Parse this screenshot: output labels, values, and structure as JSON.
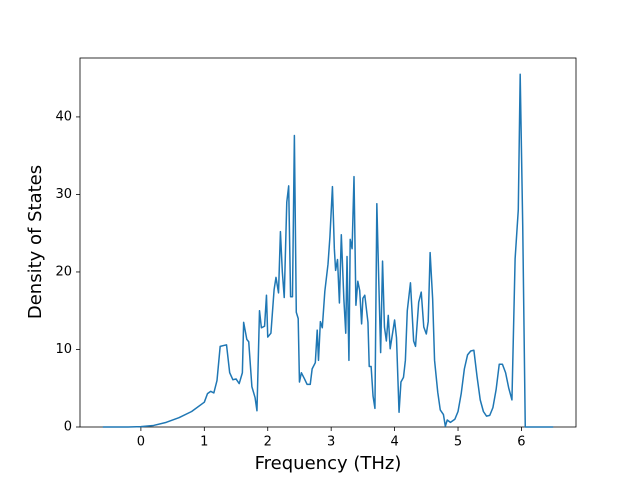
{
  "chart_data": {
    "type": "line",
    "x_label": "Frequency (THz)",
    "y_label": "Density of States",
    "x": [
      -0.6,
      -0.2,
      0,
      0.2,
      0.4,
      0.6,
      0.8,
      1.0,
      1.05,
      1.1,
      1.15,
      1.2,
      1.25,
      1.35,
      1.4,
      1.45,
      1.5,
      1.55,
      1.6,
      1.62,
      1.67,
      1.7,
      1.75,
      1.8,
      1.83,
      1.87,
      1.9,
      1.95,
      1.98,
      2.0,
      2.05,
      2.1,
      2.13,
      2.17,
      2.2,
      2.23,
      2.26,
      2.3,
      2.33,
      2.36,
      2.39,
      2.42,
      2.45,
      2.48,
      2.5,
      2.53,
      2.58,
      2.62,
      2.67,
      2.7,
      2.75,
      2.78,
      2.8,
      2.83,
      2.86,
      2.9,
      2.95,
      2.98,
      3.02,
      3.05,
      3.07,
      3.1,
      3.13,
      3.16,
      3.2,
      3.23,
      3.25,
      3.28,
      3.3,
      3.33,
      3.36,
      3.39,
      3.42,
      3.45,
      3.48,
      3.5,
      3.53,
      3.58,
      3.6,
      3.63,
      3.66,
      3.69,
      3.72,
      3.75,
      3.78,
      3.81,
      3.84,
      3.87,
      3.9,
      3.93,
      3.97,
      4.0,
      4.03,
      4.07,
      4.1,
      4.14,
      4.17,
      4.2,
      4.25,
      4.3,
      4.33,
      4.38,
      4.42,
      4.46,
      4.5,
      4.53,
      4.56,
      4.6,
      4.63,
      4.68,
      4.72,
      4.77,
      4.8,
      4.83,
      4.88,
      4.95,
      5.0,
      5.05,
      5.1,
      5.15,
      5.2,
      5.25,
      5.3,
      5.35,
      5.4,
      5.45,
      5.5,
      5.55,
      5.6,
      5.65,
      5.7,
      5.75,
      5.8,
      5.85,
      5.9,
      5.95,
      5.98,
      6.02,
      6.06,
      6.2,
      6.5
    ],
    "series": [
      {
        "color": "#1f77b4",
        "values": [
          0,
          0,
          0.05,
          0.2,
          0.6,
          1.2,
          2.0,
          3.2,
          4.3,
          4.6,
          4.4,
          6,
          10.4,
          10.6,
          7,
          6.1,
          6.2,
          5.6,
          7,
          13.5,
          11.3,
          11,
          5.2,
          3.8,
          2.1,
          15,
          12.8,
          13,
          17,
          11.6,
          12.1,
          17.7,
          19.3,
          17.3,
          25.2,
          20,
          16.7,
          29,
          31.1,
          16.8,
          16.8,
          37.6,
          14.8,
          14,
          5.8,
          7,
          6.2,
          5.5,
          5.5,
          7.5,
          8.3,
          12.5,
          8.6,
          13.6,
          12.8,
          17.5,
          21,
          24.5,
          31,
          23,
          20.2,
          21.6,
          16,
          24.8,
          16.5,
          12.1,
          22,
          8.6,
          24.2,
          23,
          32.3,
          15.7,
          18.8,
          17.6,
          13.3,
          16.6,
          17,
          13.5,
          7.8,
          7.8,
          4,
          2.4,
          28.8,
          19,
          9.6,
          21.4,
          12.9,
          11.1,
          14.4,
          10.1,
          12.2,
          13.8,
          11.5,
          1.9,
          5.8,
          6.4,
          8.6,
          15,
          18.6,
          11.1,
          10.4,
          16.1,
          17.4,
          12.9,
          12,
          13.6,
          22.5,
          16.5,
          8.6,
          4.5,
          2.2,
          1.6,
          0.1,
          0.9,
          0.6,
          1,
          2,
          4.3,
          7.5,
          9.3,
          9.8,
          9.9,
          6.5,
          3.5,
          2,
          1.4,
          1.5,
          2.5,
          4.8,
          8.1,
          8.1,
          7,
          5,
          3.5,
          21.7,
          28,
          45.5,
          26,
          0,
          0,
          0
        ]
      }
    ],
    "xlim": [
      -0.96,
      6.86
    ],
    "ylim": [
      0,
      47.6
    ],
    "xticks": [
      0,
      1,
      2,
      3,
      4,
      5,
      6
    ],
    "yticks": [
      0,
      10,
      20,
      30,
      40
    ]
  }
}
